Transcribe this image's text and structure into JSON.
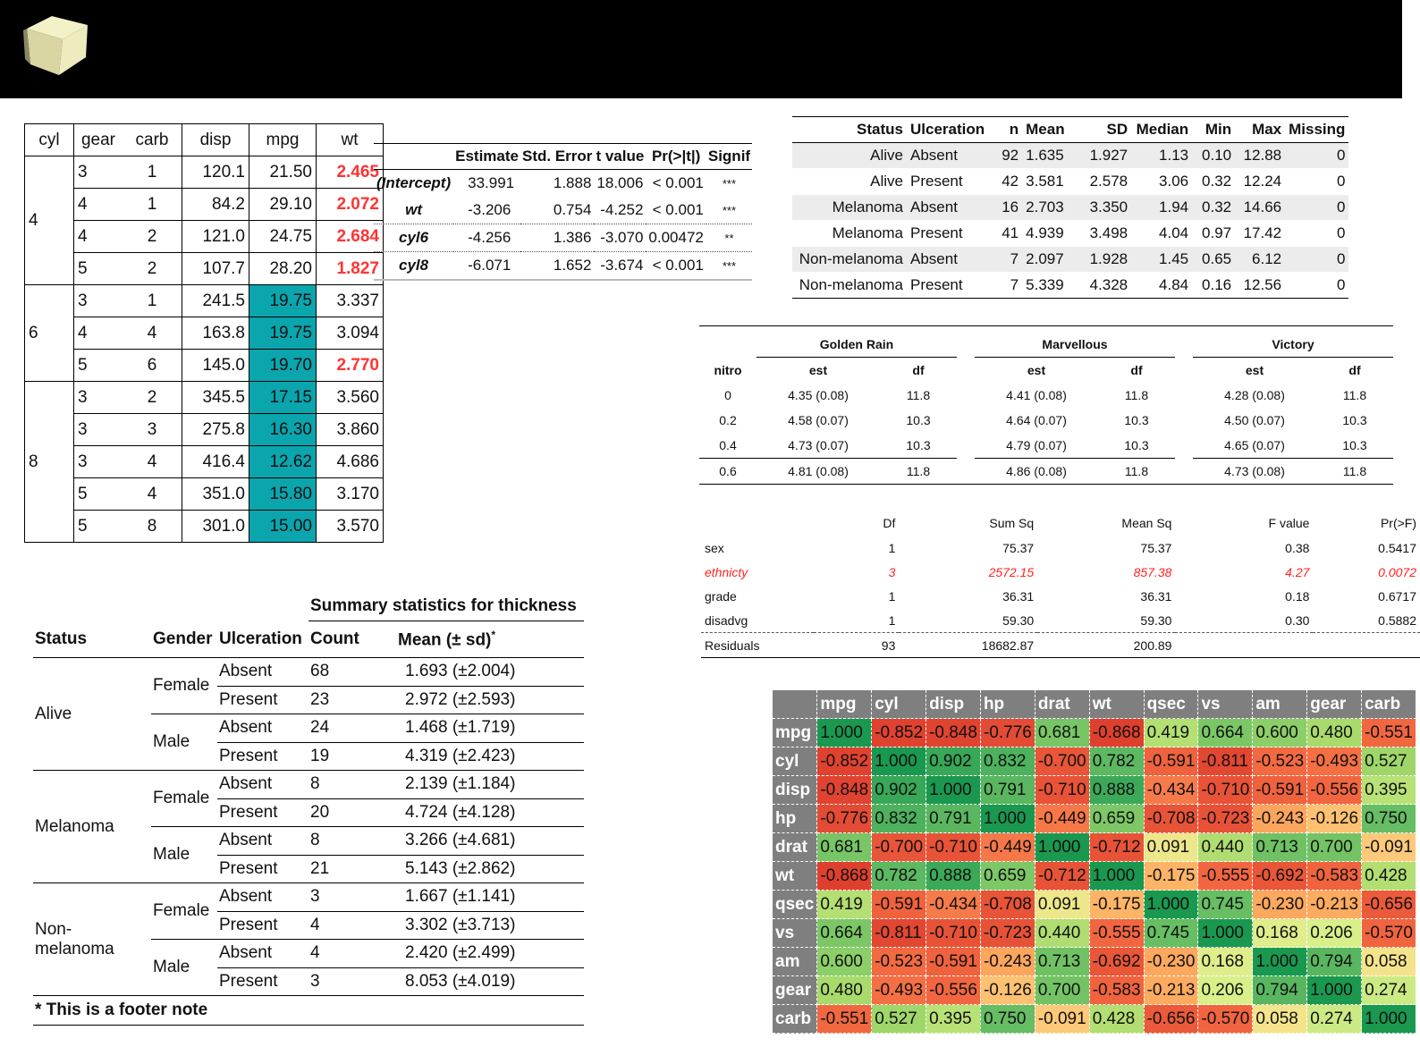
{
  "table1": {
    "headers": [
      "cyl",
      "gear",
      "carb",
      "disp",
      "mpg",
      "wt"
    ],
    "groups": [
      {
        "cyl": "4",
        "rows": [
          {
            "gear": "3",
            "carb": "1",
            "disp": "120.1",
            "mpg": "21.50",
            "wt": "2.465",
            "wt_red": true,
            "mpg_teal": false
          },
          {
            "gear": "4",
            "carb": "1",
            "disp": "84.2",
            "mpg": "29.10",
            "wt": "2.072",
            "wt_red": true,
            "mpg_teal": false
          },
          {
            "gear": "4",
            "carb": "2",
            "disp": "121.0",
            "mpg": "24.75",
            "wt": "2.684",
            "wt_red": true,
            "mpg_teal": false
          },
          {
            "gear": "5",
            "carb": "2",
            "disp": "107.7",
            "mpg": "28.20",
            "wt": "1.827",
            "wt_red": true,
            "mpg_teal": false
          }
        ]
      },
      {
        "cyl": "6",
        "rows": [
          {
            "gear": "3",
            "carb": "1",
            "disp": "241.5",
            "mpg": "19.75",
            "wt": "3.337",
            "wt_red": false,
            "mpg_teal": true
          },
          {
            "gear": "4",
            "carb": "4",
            "disp": "163.8",
            "mpg": "19.75",
            "wt": "3.094",
            "wt_red": false,
            "mpg_teal": true
          },
          {
            "gear": "5",
            "carb": "6",
            "disp": "145.0",
            "mpg": "19.70",
            "wt": "2.770",
            "wt_red": true,
            "mpg_teal": true
          }
        ]
      },
      {
        "cyl": "8",
        "rows": [
          {
            "gear": "3",
            "carb": "2",
            "disp": "345.5",
            "mpg": "17.15",
            "wt": "3.560",
            "wt_red": false,
            "mpg_teal": true
          },
          {
            "gear": "3",
            "carb": "3",
            "disp": "275.8",
            "mpg": "16.30",
            "wt": "3.860",
            "wt_red": false,
            "mpg_teal": true
          },
          {
            "gear": "3",
            "carb": "4",
            "disp": "416.4",
            "mpg": "12.62",
            "wt": "4.686",
            "wt_red": false,
            "mpg_teal": true
          },
          {
            "gear": "5",
            "carb": "4",
            "disp": "351.0",
            "mpg": "15.80",
            "wt": "3.170",
            "wt_red": false,
            "mpg_teal": true
          },
          {
            "gear": "5",
            "carb": "8",
            "disp": "301.0",
            "mpg": "15.00",
            "wt": "3.570",
            "wt_red": false,
            "mpg_teal": true
          }
        ]
      }
    ]
  },
  "table2": {
    "headers": [
      "",
      "Estimate",
      "Std. Error",
      "t value",
      "Pr(>|t|)",
      "Signif"
    ],
    "rows": [
      {
        "term": "(Intercept)",
        "est": "33.991",
        "se": "1.888",
        "t": "18.006",
        "p": "< 0.001",
        "sig": "***"
      },
      {
        "term": "wt",
        "est": "-3.206",
        "se": "0.754",
        "t": "-4.252",
        "p": "< 0.001",
        "sig": "***"
      },
      {
        "term": "cyl6",
        "est": "-4.256",
        "se": "1.386",
        "t": "-3.070",
        "p": "0.00472",
        "sig": "**"
      },
      {
        "term": "cyl8",
        "est": "-6.071",
        "se": "1.652",
        "t": "-3.674",
        "p": "< 0.001",
        "sig": "***"
      }
    ]
  },
  "table3": {
    "headers": [
      "Status",
      "Ulceration",
      "n",
      "Mean",
      "SD",
      "Median",
      "Min",
      "Max",
      "Missing"
    ],
    "rows": [
      [
        "Alive",
        "Absent",
        "92",
        "1.635",
        "1.927",
        "1.13",
        "0.10",
        "12.88",
        "0"
      ],
      [
        "Alive",
        "Present",
        "42",
        "3.581",
        "2.578",
        "3.06",
        "0.32",
        "12.24",
        "0"
      ],
      [
        "Melanoma",
        "Absent",
        "16",
        "2.703",
        "3.350",
        "1.94",
        "0.32",
        "14.66",
        "0"
      ],
      [
        "Melanoma",
        "Present",
        "41",
        "4.939",
        "3.498",
        "4.04",
        "0.97",
        "17.42",
        "0"
      ],
      [
        "Non-melanoma",
        "Absent",
        "7",
        "2.097",
        "1.928",
        "1.45",
        "0.65",
        "6.12",
        "0"
      ],
      [
        "Non-melanoma",
        "Present",
        "7",
        "5.339",
        "4.328",
        "4.84",
        "0.16",
        "12.56",
        "0"
      ]
    ]
  },
  "table4": {
    "groups": [
      "Golden Rain",
      "Marvellous",
      "Victory"
    ],
    "rowhead": "nitro",
    "subheaders": [
      "est",
      "df"
    ],
    "rows": [
      {
        "nitro": "0",
        "vals": [
          "4.35 (0.08)",
          "11.8",
          "4.41 (0.08)",
          "11.8",
          "4.28 (0.08)",
          "11.8"
        ]
      },
      {
        "nitro": "0.2",
        "vals": [
          "4.58 (0.07)",
          "10.3",
          "4.64 (0.07)",
          "10.3",
          "4.50 (0.07)",
          "10.3"
        ]
      },
      {
        "nitro": "0.4",
        "vals": [
          "4.73 (0.07)",
          "10.3",
          "4.79 (0.07)",
          "10.3",
          "4.65 (0.07)",
          "10.3"
        ]
      },
      {
        "nitro": "0.6",
        "vals": [
          "4.81 (0.08)",
          "11.8",
          "4.86 (0.08)",
          "11.8",
          "4.73 (0.08)",
          "11.8"
        ]
      }
    ]
  },
  "table5": {
    "headers": [
      "",
      "Df",
      "Sum Sq",
      "Mean Sq",
      "F value",
      "Pr(>F)"
    ],
    "rows": [
      {
        "term": "sex",
        "df": "1",
        "ss": "75.37",
        "ms": "75.37",
        "f": "0.38",
        "p": "0.5417",
        "red": false
      },
      {
        "term": "ethnicty",
        "df": "3",
        "ss": "2572.15",
        "ms": "857.38",
        "f": "4.27",
        "p": "0.0072",
        "red": true
      },
      {
        "term": "grade",
        "df": "1",
        "ss": "36.31",
        "ms": "36.31",
        "f": "0.18",
        "p": "0.6717",
        "red": false
      },
      {
        "term": "disadvg",
        "df": "1",
        "ss": "59.30",
        "ms": "59.30",
        "f": "0.30",
        "p": "0.5882",
        "red": false
      },
      {
        "term": "Residuals",
        "df": "93",
        "ss": "18682.87",
        "ms": "200.89",
        "f": "",
        "p": "",
        "red": false
      }
    ]
  },
  "table6": {
    "caption": "Summary statistics for thickness",
    "headers": [
      "Status",
      "Gender",
      "Ulceration",
      "Count",
      "Mean (± sd)"
    ],
    "header_mark": "*",
    "statuses": [
      {
        "status": "Alive",
        "genders": [
          {
            "gender": "Female",
            "rows": [
              {
                "ulc": "Absent",
                "count": "68",
                "mean": "1.693 (±2.004)"
              },
              {
                "ulc": "Present",
                "count": "23",
                "mean": "2.972 (±2.593)"
              }
            ]
          },
          {
            "gender": "Male",
            "rows": [
              {
                "ulc": "Absent",
                "count": "24",
                "mean": "1.468 (±1.719)"
              },
              {
                "ulc": "Present",
                "count": "19",
                "mean": "4.319 (±2.423)"
              }
            ]
          }
        ]
      },
      {
        "status": "Melanoma",
        "genders": [
          {
            "gender": "Female",
            "rows": [
              {
                "ulc": "Absent",
                "count": "8",
                "mean": "2.139 (±1.184)"
              },
              {
                "ulc": "Present",
                "count": "20",
                "mean": "4.724 (±4.128)"
              }
            ]
          },
          {
            "gender": "Male",
            "rows": [
              {
                "ulc": "Absent",
                "count": "8",
                "mean": "3.266 (±4.681)"
              },
              {
                "ulc": "Present",
                "count": "21",
                "mean": "5.143 (±2.862)"
              }
            ]
          }
        ]
      },
      {
        "status": "Non-melanoma",
        "genders": [
          {
            "gender": "Female",
            "rows": [
              {
                "ulc": "Absent",
                "count": "3",
                "mean": "1.667 (±1.141)"
              },
              {
                "ulc": "Present",
                "count": "4",
                "mean": "3.302 (±3.713)"
              }
            ]
          },
          {
            "gender": "Male",
            "rows": [
              {
                "ulc": "Absent",
                "count": "4",
                "mean": "2.420 (±2.499)"
              },
              {
                "ulc": "Present",
                "count": "3",
                "mean": "8.053 (±4.019)"
              }
            ]
          }
        ]
      }
    ],
    "footnote": "* This is a footer note"
  },
  "table7": {
    "vars": [
      "mpg",
      "cyl",
      "disp",
      "hp",
      "drat",
      "wt",
      "qsec",
      "vs",
      "am",
      "gear",
      "carb"
    ],
    "matrix": [
      [
        "1.000",
        "-0.852",
        "-0.848",
        "-0.776",
        "0.681",
        "-0.868",
        "0.419",
        "0.664",
        "0.600",
        "0.480",
        "-0.551"
      ],
      [
        "-0.852",
        "1.000",
        "0.902",
        "0.832",
        "-0.700",
        "0.782",
        "-0.591",
        "-0.811",
        "-0.523",
        "-0.493",
        "0.527"
      ],
      [
        "-0.848",
        "0.902",
        "1.000",
        "0.791",
        "-0.710",
        "0.888",
        "-0.434",
        "-0.710",
        "-0.591",
        "-0.556",
        "0.395"
      ],
      [
        "-0.776",
        "0.832",
        "0.791",
        "1.000",
        "-0.449",
        "0.659",
        "-0.708",
        "-0.723",
        "-0.243",
        "-0.126",
        "0.750"
      ],
      [
        "0.681",
        "-0.700",
        "-0.710",
        "-0.449",
        "1.000",
        "-0.712",
        "0.091",
        "0.440",
        "0.713",
        "0.700",
        "-0.091"
      ],
      [
        "-0.868",
        "0.782",
        "0.888",
        "0.659",
        "-0.712",
        "1.000",
        "-0.175",
        "-0.555",
        "-0.692",
        "-0.583",
        "0.428"
      ],
      [
        "0.419",
        "-0.591",
        "-0.434",
        "-0.708",
        "0.091",
        "-0.175",
        "1.000",
        "0.745",
        "-0.230",
        "-0.213",
        "-0.656"
      ],
      [
        "0.664",
        "-0.811",
        "-0.710",
        "-0.723",
        "0.440",
        "-0.555",
        "0.745",
        "1.000",
        "0.168",
        "0.206",
        "-0.570"
      ],
      [
        "0.600",
        "-0.523",
        "-0.591",
        "-0.243",
        "0.713",
        "-0.692",
        "-0.230",
        "0.168",
        "1.000",
        "0.794",
        "0.058"
      ],
      [
        "0.480",
        "-0.493",
        "-0.556",
        "-0.126",
        "0.700",
        "-0.583",
        "-0.213",
        "0.206",
        "0.794",
        "1.000",
        "0.274"
      ],
      [
        "-0.551",
        "0.527",
        "0.395",
        "0.750",
        "-0.091",
        "0.428",
        "-0.656",
        "-0.570",
        "0.058",
        "0.274",
        "1.000"
      ]
    ]
  },
  "colors": {
    "red_text": "#ff3333",
    "teal": "#0aa5ad",
    "header_gray": "#7f7f7f"
  }
}
